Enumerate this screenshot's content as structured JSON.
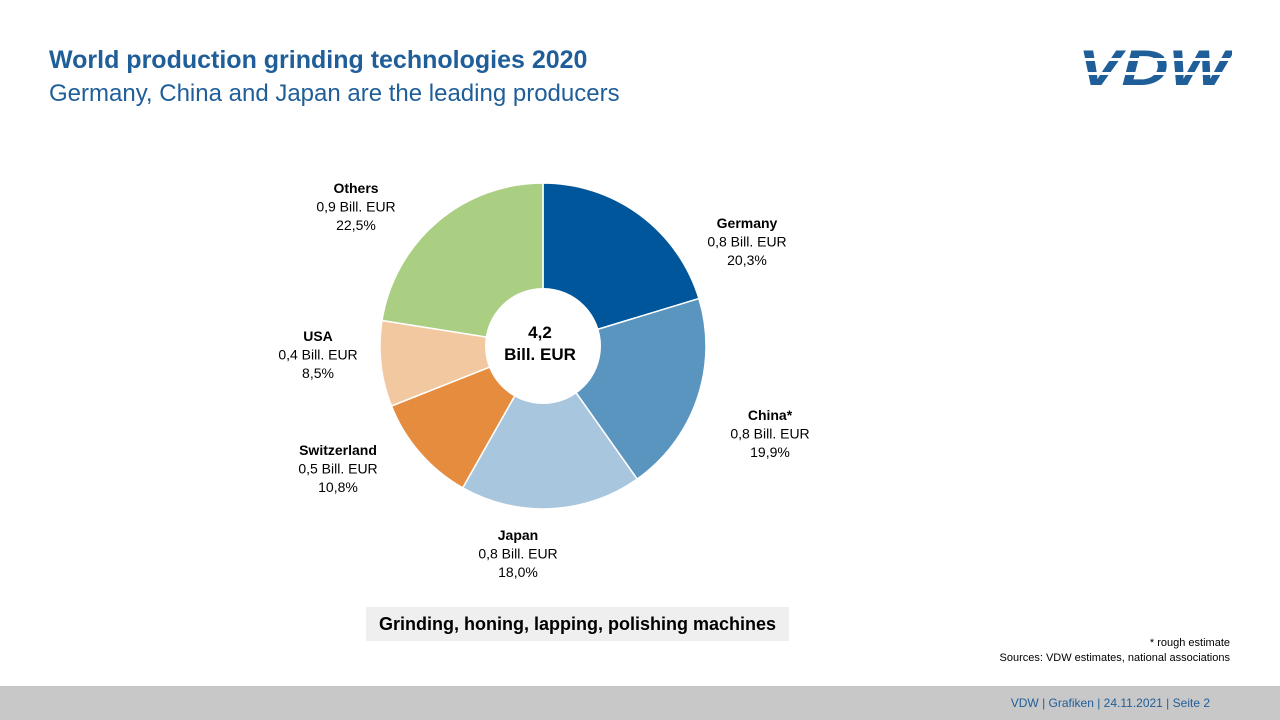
{
  "header": {
    "title": "World production grinding technologies 2020",
    "subtitle": "Germany, China and Japan are the leading producers",
    "logo_text": "VDW"
  },
  "colors": {
    "title": "#1f5e99",
    "footer_bar": "#c8c8c8"
  },
  "chart_data": {
    "type": "pie",
    "donut": true,
    "center_label": {
      "value": "4,2",
      "unit": "Bill. EUR"
    },
    "slices": [
      {
        "name": "Germany",
        "amount": "0,8 Bill. EUR",
        "percent_label": "20,3%",
        "value": 20.3,
        "color": "#00569a"
      },
      {
        "name": "China*",
        "amount": "0,8 Bill. EUR",
        "percent_label": "19,9%",
        "value": 19.9,
        "color": "#5a95c0"
      },
      {
        "name": "Japan",
        "amount": "0,8 Bill. EUR",
        "percent_label": "18,0%",
        "value": 18.0,
        "color": "#a8c6de"
      },
      {
        "name": "Switzerland",
        "amount": "0,5 Bill. EUR",
        "percent_label": "10,8%",
        "value": 10.8,
        "color": "#e68c3f"
      },
      {
        "name": "USA",
        "amount": "0,4 Bill. EUR",
        "percent_label": "8,5%",
        "value": 8.5,
        "color": "#f2c8a0"
      },
      {
        "name": "Others",
        "amount": "0,9 Bill. EUR",
        "percent_label": "22,5%",
        "value": 22.5,
        "color": "#aacf82"
      }
    ],
    "caption": "Grinding, honing, lapping, polishing machines"
  },
  "footnotes": {
    "estimate": "* rough estimate",
    "sources": "Sources: VDW estimates, national associations"
  },
  "footer": {
    "text": "VDW  |  Grafiken  |   24.11.2021    |  Seite  2"
  }
}
